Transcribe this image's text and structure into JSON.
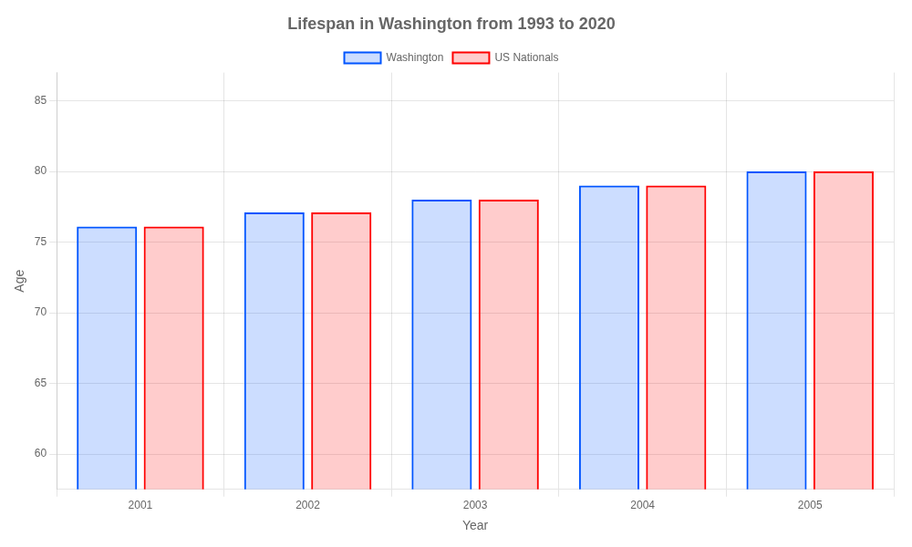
{
  "chart_data": {
    "type": "bar",
    "title": "Lifespan in Washington from 1993 to 2020",
    "x_label": "Year",
    "y_label": "Age",
    "categories": [
      "2001",
      "2002",
      "2003",
      "2004",
      "2005"
    ],
    "series": [
      {
        "name": "Washington",
        "color": "#0055ff",
        "values": [
          76.1,
          77.1,
          78.0,
          79.0,
          80.0
        ]
      },
      {
        "name": "US Nationals",
        "color": "#ff0000",
        "values": [
          76.1,
          77.1,
          78.0,
          79.0,
          80.0
        ]
      }
    ],
    "ylim": [
      57.5,
      87
    ],
    "yticks": [
      60,
      65,
      70,
      75,
      80,
      85
    ],
    "grid": true,
    "legend": "top"
  }
}
